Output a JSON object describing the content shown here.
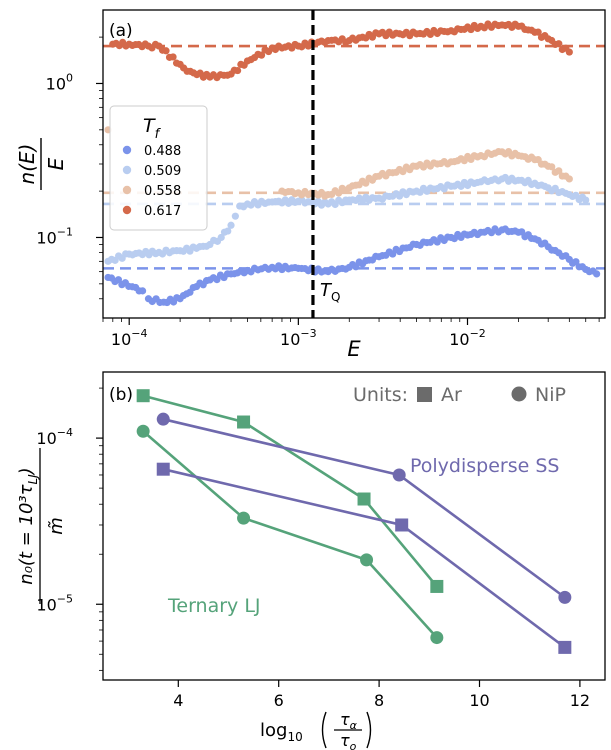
{
  "colors": {
    "tf_0488": "#7b93ea",
    "tf_0509": "#b9cdf0",
    "tf_0558": "#e8c1a8",
    "tf_0617": "#d4694a",
    "ternary": "#55a37a",
    "poly": "#6f69ad",
    "units_gray": "#6b6b6b",
    "tq_line": "#000000"
  },
  "chart_data": [
    {
      "type": "scatter",
      "panel_label": "(a)",
      "xlabel": "E",
      "ylabel_num": "n(E)",
      "ylabel_den": "E",
      "x_scale": "log",
      "y_scale": "log",
      "xlim": [
        7e-05,
        0.065
      ],
      "ylim": [
        0.03,
        3.0
      ],
      "x_ticks": [
        {
          "value": 0.0001,
          "base": "10",
          "exp": "−4"
        },
        {
          "value": 0.001,
          "base": "10",
          "exp": "−3"
        },
        {
          "value": 0.01,
          "base": "10",
          "exp": "−2"
        }
      ],
      "y_ticks": [
        {
          "value": 0.1,
          "base": "10",
          "exp": "−1"
        },
        {
          "value": 1.0,
          "base": "10",
          "exp": "0"
        }
      ],
      "grid": false,
      "tq": {
        "label": "T",
        "sub": "Q",
        "x": 0.00122
      },
      "legend": {
        "title": "T",
        "title_sub": "f",
        "placement": "upper-left"
      },
      "series": [
        {
          "name": "0.488",
          "color_key": "tf_0488",
          "plateau": 0.063,
          "points": [
            [
              7.5e-05,
              0.055
            ],
            [
              0.00012,
              0.045
            ],
            [
              0.00013,
              0.04
            ],
            [
              0.00016,
              0.038
            ],
            [
              0.0002,
              0.04
            ],
            [
              0.00025,
              0.048
            ],
            [
              0.0003,
              0.053
            ],
            [
              0.0004,
              0.058
            ],
            [
              0.0005,
              0.061
            ],
            [
              0.0007,
              0.064
            ],
            [
              0.001,
              0.063
            ],
            [
              0.0015,
              0.06
            ],
            [
              0.002,
              0.064
            ],
            [
              0.003,
              0.075
            ],
            [
              0.005,
              0.09
            ],
            [
              0.008,
              0.1
            ],
            [
              0.012,
              0.108
            ],
            [
              0.016,
              0.112
            ],
            [
              0.02,
              0.108
            ],
            [
              0.025,
              0.098
            ],
            [
              0.03,
              0.087
            ],
            [
              0.04,
              0.072
            ],
            [
              0.05,
              0.062
            ],
            [
              0.058,
              0.058
            ]
          ]
        },
        {
          "name": "0.509",
          "color_key": "tf_0509",
          "plateau": 0.165,
          "points": [
            [
              7.5e-05,
              0.07
            ],
            [
              0.0001,
              0.078
            ],
            [
              0.00015,
              0.08
            ],
            [
              0.0002,
              0.082
            ],
            [
              0.00025,
              0.085
            ],
            [
              0.0003,
              0.09
            ],
            [
              0.00035,
              0.1
            ],
            [
              0.0004,
              0.12
            ],
            [
              0.00045,
              0.16
            ],
            [
              0.0005,
              0.165
            ],
            [
              0.0007,
              0.17
            ],
            [
              0.001,
              0.172
            ],
            [
              0.0015,
              0.165
            ],
            [
              0.002,
              0.175
            ],
            [
              0.003,
              0.18
            ],
            [
              0.005,
              0.2
            ],
            [
              0.008,
              0.215
            ],
            [
              0.012,
              0.23
            ],
            [
              0.016,
              0.24
            ],
            [
              0.02,
              0.235
            ],
            [
              0.025,
              0.225
            ],
            [
              0.03,
              0.21
            ],
            [
              0.04,
              0.19
            ],
            [
              0.05,
              0.175
            ]
          ]
        },
        {
          "name": "0.558",
          "color_key": "tf_0558",
          "plateau": 0.195,
          "points": [
            [
              7.5e-05,
              0.5
            ],
            [
              0.0008,
              0.2
            ],
            [
              0.001,
              0.195
            ],
            [
              0.0015,
              0.19
            ],
            [
              0.002,
              0.21
            ],
            [
              0.003,
              0.25
            ],
            [
              0.005,
              0.29
            ],
            [
              0.008,
              0.31
            ],
            [
              0.012,
              0.34
            ],
            [
              0.016,
              0.36
            ],
            [
              0.02,
              0.34
            ],
            [
              0.025,
              0.32
            ],
            [
              0.03,
              0.29
            ],
            [
              0.04,
              0.24
            ]
          ]
        },
        {
          "name": "0.617",
          "color_key": "tf_0617",
          "plateau": 1.75,
          "points": [
            [
              8e-05,
              1.8
            ],
            [
              0.0001,
              1.8
            ],
            [
              0.00013,
              1.75
            ],
            [
              0.00015,
              1.75
            ],
            [
              0.00022,
              1.2
            ],
            [
              0.0003,
              1.1
            ],
            [
              0.0004,
              1.15
            ],
            [
              0.0005,
              1.4
            ],
            [
              0.0007,
              1.7
            ],
            [
              0.001,
              1.75
            ],
            [
              0.0015,
              1.9
            ],
            [
              0.002,
              1.9
            ],
            [
              0.003,
              2.1
            ],
            [
              0.005,
              2.1
            ],
            [
              0.008,
              2.2
            ],
            [
              0.012,
              2.35
            ],
            [
              0.016,
              2.4
            ],
            [
              0.02,
              2.35
            ],
            [
              0.025,
              2.15
            ],
            [
              0.03,
              1.95
            ],
            [
              0.04,
              1.6
            ]
          ]
        }
      ]
    },
    {
      "type": "line",
      "panel_label": "(b)",
      "xlabel_pre": "log",
      "xlabel_sub": "10",
      "xlabel_num": "τ",
      "xlabel_num_sub": "α",
      "xlabel_den": "τ",
      "xlabel_den_sub": "o",
      "ylabel_num": "n₀(t = 10³τ",
      "ylabel_num_sub": "LJ",
      "ylabel_num_end": ")",
      "ylabel_den": "m̃",
      "x_scale": "linear",
      "y_scale": "log",
      "xlim": [
        2.5,
        12.5
      ],
      "ylim": [
        3.5e-06,
        0.00025
      ],
      "x_ticks": [
        4,
        6,
        8,
        10,
        12
      ],
      "y_ticks": [
        {
          "value": 1e-05,
          "base": "10",
          "exp": "−5"
        },
        {
          "value": 0.0001,
          "base": "10",
          "exp": "−4"
        }
      ],
      "grid": false,
      "units_label": "Units:",
      "legend": [
        {
          "marker": "square",
          "name": "Ar"
        },
        {
          "marker": "circle",
          "name": "NiP"
        }
      ],
      "annotations": [
        {
          "text": "Polydisperse SS",
          "color_key": "poly"
        },
        {
          "text": "Ternary LJ",
          "color_key": "ternary"
        }
      ],
      "series": [
        {
          "system": "Ternary LJ",
          "units": "Ar",
          "marker": "square",
          "color_key": "ternary",
          "x": [
            3.3,
            5.3,
            7.7,
            9.15
          ],
          "y": [
            0.00018,
            0.000125,
            4.3e-05,
            1.28e-05
          ]
        },
        {
          "system": "Ternary LJ",
          "units": "NiP",
          "marker": "circle",
          "color_key": "ternary",
          "x": [
            3.3,
            5.3,
            7.75,
            9.15
          ],
          "y": [
            0.00011,
            3.3e-05,
            1.85e-05,
            6.3e-06
          ]
        },
        {
          "system": "Polydisperse SS",
          "units": "NiP",
          "marker": "circle",
          "color_key": "poly",
          "x": [
            3.7,
            8.4,
            11.7
          ],
          "y": [
            0.00013,
            6e-05,
            1.1e-05
          ]
        },
        {
          "system": "Polydisperse SS",
          "units": "Ar",
          "marker": "square",
          "color_key": "poly",
          "x": [
            3.7,
            8.45,
            11.7
          ],
          "y": [
            6.5e-05,
            3e-05,
            5.5e-06
          ]
        }
      ]
    }
  ]
}
